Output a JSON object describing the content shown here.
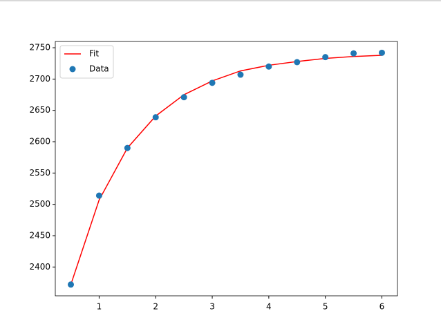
{
  "chart_data": {
    "type": "line",
    "x": [
      0.5,
      1,
      1.5,
      2,
      2.5,
      3,
      3.5,
      4,
      4.5,
      5,
      5.5,
      6
    ],
    "series": [
      {
        "name": "Fit",
        "type": "line",
        "color": "#ff0000",
        "values": [
          2372,
          2507,
          2590,
          2641,
          2675,
          2697,
          2713,
          2722,
          2728,
          2733,
          2736,
          2738
        ]
      },
      {
        "name": "Data",
        "type": "scatter",
        "color": "#1f77b4",
        "values": [
          2372,
          2514,
          2590,
          2639,
          2671,
          2694,
          2707,
          2720,
          2727,
          2735,
          2741,
          2742
        ]
      }
    ],
    "xlim": [
      0.225,
      6.275
    ],
    "xticks": [
      1,
      2,
      3,
      4,
      5,
      6
    ],
    "ylim": [
      2354,
      2760
    ],
    "yticks": [
      2400,
      2450,
      2500,
      2550,
      2600,
      2650,
      2700,
      2750
    ],
    "grid": false,
    "legend": "upper-left"
  }
}
